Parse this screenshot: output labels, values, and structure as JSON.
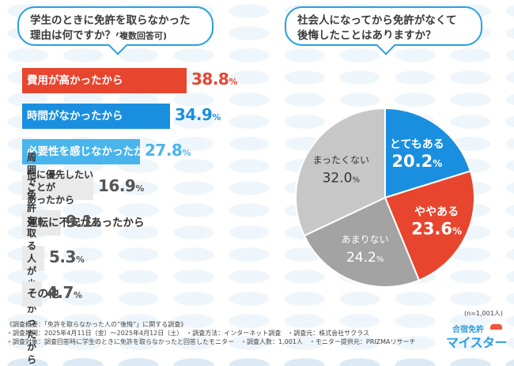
{
  "left_question": {
    "line1": "学生のときに免許を取らなかった",
    "line2": "理由は何ですか？",
    "note": "(複数回答可)"
  },
  "right_question": {
    "line1": "社会人になってから免許がなくて",
    "line2": "後悔したことはありますか？"
  },
  "chart_data": [
    {
      "type": "bar",
      "orientation": "horizontal",
      "title": "学生のときに免許を取らなかった理由は何ですか？(複数回答可)",
      "categories": [
        "費用が高かったから",
        "時間がなかったから",
        "必要性を感じなかったから",
        "他に優先したいことがあったから",
        "運転に不安があったから",
        "周囲で免許を取る人が少なかったから",
        "その他"
      ],
      "labels": [
        [
          "費用が高かったから"
        ],
        [
          "時間がなかったから"
        ],
        [
          "必要性を感じなかったから"
        ],
        [
          "他に優先したいことが",
          "あったから"
        ],
        [
          "運転に不安があったから"
        ],
        [
          "周囲で免許を取る人が",
          "少なかったから"
        ],
        [
          "その他"
        ]
      ],
      "values": [
        38.8,
        34.9,
        27.8,
        16.9,
        9.1,
        5.3,
        4.7
      ],
      "unit": "%",
      "colors": [
        "#e8452f",
        "#1b8fdf",
        "#4ab5ec",
        "#eaeaea",
        "#eaeaea",
        "#eaeaea",
        "#eaeaea"
      ],
      "text_colors": [
        "#ffffff",
        "#ffffff",
        "#ffffff",
        "#333333",
        "#333333",
        "#333333",
        "#333333"
      ],
      "value_colors": [
        "#e8452f",
        "#1b8fdf",
        "#4ab5ec",
        "#555555",
        "#555555",
        "#555555",
        "#555555"
      ]
    },
    {
      "type": "pie",
      "title": "社会人になってから免許がなくて後悔したことはありますか？",
      "categories": [
        "とてもある",
        "ややある",
        "あまりない",
        "まったくない"
      ],
      "values": [
        20.2,
        23.6,
        24.2,
        32.0
      ],
      "unit": "%",
      "colors": [
        "#1b8fdf",
        "#e8452f",
        "#a3a3a3",
        "#c7c7c7"
      ],
      "text_colors": [
        "#ffffff",
        "#ffffff",
        "#ffffff",
        "#333333"
      ],
      "n_label": "(n=1,001人)"
    }
  ],
  "footer": {
    "lines": [
      "《調査概要：「免許を取らなかった人の“後悔”」に関する調査》",
      "・調査期間：2025年4月11日（金）～2025年4月12日（土）　・調査方法：インターネット調査　・調査元：株式会社サクラス",
      "・調査対象：調査回答時に学生のときに免許を取らなかったと回答したモニター　・調査人数：1,001人　・モニター提供元：PRIZMAリサーチ"
    ]
  },
  "logo": {
    "top": "合宿免許",
    "main": "マイスター"
  }
}
